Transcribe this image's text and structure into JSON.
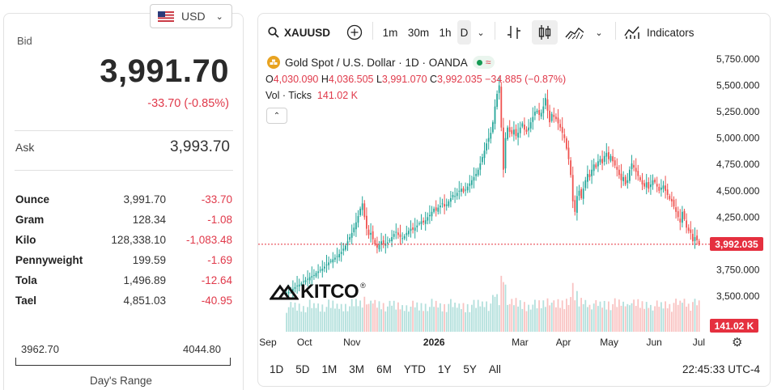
{
  "currency": {
    "code": "USD"
  },
  "quote": {
    "bid_label": "Bid",
    "bid": "3,991.70",
    "change": "-33.70 (-0.85%)",
    "ask_label": "Ask",
    "ask": "3,993.70"
  },
  "units": [
    {
      "unit": "Ounce",
      "price": "3,991.70",
      "change": "-33.70"
    },
    {
      "unit": "Gram",
      "price": "128.34",
      "change": "-1.08"
    },
    {
      "unit": "Kilo",
      "price": "128,338.10",
      "change": "-1,083.48"
    },
    {
      "unit": "Pennyweight",
      "price": "199.59",
      "change": "-1.69"
    },
    {
      "unit": "Tola",
      "price": "1,496.89",
      "change": "-12.64"
    },
    {
      "unit": "Tael",
      "price": "4,851.03",
      "change": "-40.95"
    }
  ],
  "day_range": {
    "low": "3962.70",
    "high": "4044.80",
    "label": "Day's Range"
  },
  "toolbar": {
    "symbol": "XAUUSD",
    "intervals": [
      "1m",
      "30m",
      "1h",
      "D"
    ],
    "indicators_label": "Indicators"
  },
  "legend": {
    "title": "Gold Spot / U.S. Dollar · 1D · OANDA",
    "open_label": "O",
    "open": "4,030.090",
    "high_label": "H",
    "high": "4,036.505",
    "low_label": "L",
    "low": "3,991.070",
    "close_label": "C",
    "close": "3,992.035",
    "change": "−34.885 (−0.87%)",
    "vol_label": "Vol · Ticks",
    "vol_value": "141.02 K"
  },
  "logo_text": "KITCO",
  "bottom": {
    "ranges": [
      "1D",
      "5D",
      "1M",
      "3M",
      "6M",
      "YTD",
      "1Y",
      "5Y",
      "All"
    ],
    "clock": "22:45:33 UTC-4"
  },
  "colors": {
    "up": "#26a69a",
    "down": "#ef5350",
    "accent": "#e5303f",
    "gold": "#e8a321"
  },
  "chart_data": {
    "type": "candlestick",
    "symbol": "XAUUSD",
    "interval": "1D",
    "price_tag": "3,992.035",
    "volume_tag": "141.02 K",
    "yticks": [
      3500,
      3750,
      4000,
      4250,
      4500,
      4750,
      5000,
      5250,
      5500,
      5750
    ],
    "ytick_labels": [
      "3,500.000",
      "3,750.000",
      "4,000.000",
      "4,250.000",
      "4,500.000",
      "4,750.000",
      "5,000.000",
      "5,250.000",
      "5,500.000",
      "5,750.000"
    ],
    "ylim": [
      3300,
      5800
    ],
    "xlabels": [
      "Sep",
      "Oct",
      "Nov",
      "2026",
      "Mar",
      "Apr",
      "May",
      "Jun",
      "Jul"
    ],
    "xlabel_index": [
      0,
      21,
      43,
      81,
      123,
      144,
      165,
      187,
      209
    ],
    "n_slots": 210,
    "closes": [
      3530,
      3540,
      3555,
      3570,
      3585,
      3600,
      3610,
      3620,
      3640,
      3650,
      3665,
      3680,
      3690,
      3700,
      3720,
      3735,
      3750,
      3760,
      3780,
      3800,
      3820,
      3835,
      3850,
      3865,
      3880,
      3900,
      3920,
      3950,
      3980,
      4020,
      4060,
      4100,
      4150,
      4200,
      4260,
      4330,
      4380,
      4250,
      4140,
      4080,
      4100,
      4040,
      3990,
      3960,
      3990,
      4020,
      3990,
      4000,
      4010,
      4030,
      4060,
      4090,
      4110,
      4080,
      4060,
      4050,
      4070,
      4100,
      4120,
      4140,
      4130,
      4150,
      4170,
      4190,
      4210,
      4200,
      4220,
      4250,
      4270,
      4300,
      4330,
      4310,
      4340,
      4360,
      4380,
      4350,
      4370,
      4400,
      4430,
      4460,
      4450,
      4480,
      4500,
      4520,
      4490,
      4510,
      4540,
      4570,
      4600,
      4630,
      4660,
      4700,
      4760,
      4820,
      4880,
      4950,
      5000,
      5050,
      5150,
      5300,
      5420,
      5500,
      5100,
      4700,
      5000,
      5100,
      5060,
      5040,
      5080,
      5020,
      5050,
      5100,
      5140,
      5080,
      5060,
      5100,
      5150,
      5200,
      5250,
      5260,
      5220,
      5240,
      5300,
      5380,
      5260,
      5150,
      5230,
      5200,
      5180,
      5140,
      5100,
      5050,
      5000,
      4900,
      4800,
      4650,
      4400,
      4300,
      4450,
      4500,
      4430,
      4520,
      4600,
      4660,
      4630,
      4700,
      4750,
      4720,
      4780,
      4800,
      4760,
      4830,
      4860,
      4800,
      4830,
      4780,
      4740,
      4700,
      4650,
      4600,
      4630,
      4560,
      4600,
      4700,
      4760,
      4720,
      4680,
      4640,
      4600,
      4560,
      4540,
      4580,
      4520,
      4560,
      4600,
      4580,
      4540,
      4500,
      4530,
      4550,
      4500,
      4460,
      4420,
      4400,
      4350,
      4300,
      4250,
      4200,
      4300,
      4230,
      4150,
      4120,
      4100,
      4020,
      4060,
      4030,
      3992
    ],
    "volume_scale": [
      0,
      160000
    ]
  }
}
